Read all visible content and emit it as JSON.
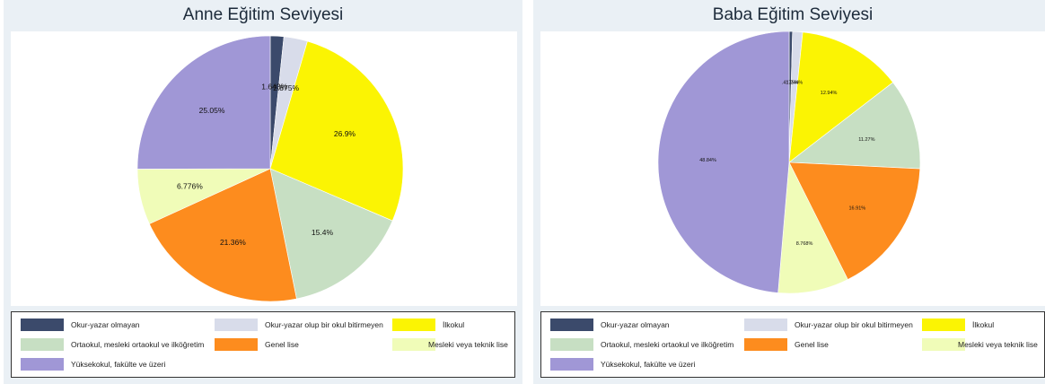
{
  "chart_data": [
    {
      "type": "pie",
      "title": "Anne Eğitim Seviyesi",
      "slices": [
        {
          "label": "Okur-yazar olmayan",
          "value": 1.643,
          "value_label": "1.643%",
          "color": "#3b4a6b"
        },
        {
          "label": "Okur-yazar olup bir okul bitirmeyen",
          "value": 2.875,
          "value_label": "2.875%",
          "color": "#d8dcea"
        },
        {
          "label": "İlkokul",
          "value": 26.9,
          "value_label": "26.9%",
          "color": "#fbf403"
        },
        {
          "label": "Ortaokul, mesleki ortaokul ve ilköğretim",
          "value": 15.4,
          "value_label": "15.4%",
          "color": "#c7dfc3"
        },
        {
          "label": "Genel lise",
          "value": 21.36,
          "value_label": "21.36%",
          "color": "#fd8c1e"
        },
        {
          "label": "Mesleki veya teknik lise",
          "value": 6.776,
          "value_label": "6.776%",
          "color": "#f0fcb8"
        },
        {
          "label": "Yüksekokul, fakülte ve üzeri",
          "value": 25.05,
          "value_label": "25.05%",
          "color": "#a097d6"
        }
      ],
      "legend_position": "bottom"
    },
    {
      "type": "pie",
      "title": "Baba Eğitim Seviyesi",
      "slices": [
        {
          "label": "Okur-yazar olmayan",
          "value": 0.4175,
          "value_label": ".4175%",
          "color": "#3b4a6b"
        },
        {
          "label": "Okur-yazar olup bir okul bitirmeyen",
          "value": 1.244,
          "value_label": "1.244%",
          "color": "#d8dcea"
        },
        {
          "label": "İlkokul",
          "value": 12.94,
          "value_label": "12.94%",
          "color": "#fbf403"
        },
        {
          "label": "Ortaokul, mesleki ortaokul ve ilköğretim",
          "value": 11.27,
          "value_label": "11.27%",
          "color": "#c7dfc3"
        },
        {
          "label": "Genel lise",
          "value": 16.91,
          "value_label": "16.91%",
          "color": "#fd8c1e"
        },
        {
          "label": "Mesleki veya teknik lise",
          "value": 8.768,
          "value_label": "8.768%",
          "color": "#f0fcb8"
        },
        {
          "label": "Yüksekokul, fakülte ve üzeri",
          "value": 48.84,
          "value_label": "48.84%",
          "color": "#a097d6"
        }
      ],
      "legend_position": "bottom"
    }
  ]
}
